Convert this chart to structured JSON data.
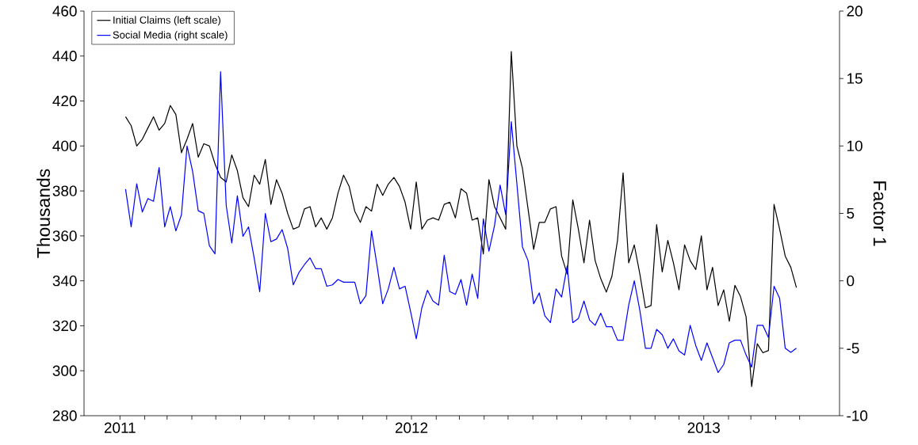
{
  "chart_data": {
    "type": "line",
    "ylabel": "Thousands",
    "y2label": "Factor 1",
    "legend": "top left",
    "x": [
      "2011-01-08",
      "2011-01-15",
      "2011-01-22",
      "2011-01-29",
      "2011-02-05",
      "2011-02-12",
      "2011-02-19",
      "2011-02-26",
      "2011-03-05",
      "2011-03-12",
      "2011-03-19",
      "2011-03-26",
      "2011-04-02",
      "2011-04-09",
      "2011-04-16",
      "2011-04-23",
      "2011-04-30",
      "2011-05-07",
      "2011-05-14",
      "2011-05-21",
      "2011-05-28",
      "2011-06-04",
      "2011-06-11",
      "2011-06-18",
      "2011-06-25",
      "2011-07-02",
      "2011-07-09",
      "2011-07-16",
      "2011-07-23",
      "2011-07-30",
      "2011-08-06",
      "2011-08-13",
      "2011-08-20",
      "2011-08-27",
      "2011-09-03",
      "2011-09-10",
      "2011-09-17",
      "2011-09-24",
      "2011-10-01",
      "2011-10-08",
      "2011-10-15",
      "2011-10-22",
      "2011-10-29",
      "2011-11-05",
      "2011-11-12",
      "2011-11-19",
      "2011-11-26",
      "2011-12-03",
      "2011-12-10",
      "2011-12-17",
      "2011-12-24",
      "2011-12-31",
      "2012-01-07",
      "2012-01-14",
      "2012-01-21",
      "2012-01-28",
      "2012-02-04",
      "2012-02-11",
      "2012-02-18",
      "2012-02-25",
      "2012-03-03",
      "2012-03-10",
      "2012-03-17",
      "2012-03-24",
      "2012-03-31",
      "2012-04-07",
      "2012-04-14",
      "2012-04-21",
      "2012-04-28",
      "2012-05-05",
      "2012-05-12",
      "2012-05-19",
      "2012-05-26",
      "2012-06-02",
      "2012-06-09",
      "2012-06-16",
      "2012-06-23",
      "2012-06-30",
      "2012-07-07",
      "2012-07-14",
      "2012-07-21",
      "2012-07-28",
      "2012-08-04",
      "2012-08-11",
      "2012-08-18",
      "2012-08-25",
      "2012-09-01",
      "2012-09-08",
      "2012-09-15",
      "2012-09-22",
      "2012-09-29",
      "2012-10-06",
      "2012-10-13",
      "2012-10-20",
      "2012-10-27",
      "2012-11-03",
      "2012-11-10",
      "2012-11-17",
      "2012-11-24",
      "2012-12-01",
      "2012-12-08",
      "2012-12-15",
      "2012-12-22",
      "2012-12-29",
      "2013-01-05",
      "2013-01-12",
      "2013-01-19",
      "2013-01-26",
      "2013-02-02",
      "2013-02-09",
      "2013-02-16",
      "2013-02-23",
      "2013-03-02",
      "2013-03-09",
      "2013-03-16",
      "2013-03-23",
      "2013-03-30",
      "2013-04-06",
      "2013-04-13",
      "2013-04-20",
      "2013-04-27"
    ],
    "xlim": [
      "2010-11-17",
      "2013-06-20"
    ],
    "xticks": [
      {
        "value": "2011-01-01",
        "label": "2011"
      },
      {
        "value": "2011-02-01",
        "label": null
      },
      {
        "value": "2011-03-01",
        "label": null
      },
      {
        "value": "2011-04-01",
        "label": null
      },
      {
        "value": "2011-05-01",
        "label": null
      },
      {
        "value": "2011-06-01",
        "label": null
      },
      {
        "value": "2011-07-01",
        "label": null
      },
      {
        "value": "2011-08-01",
        "label": null
      },
      {
        "value": "2011-09-01",
        "label": null
      },
      {
        "value": "2011-10-01",
        "label": null
      },
      {
        "value": "2011-11-01",
        "label": null
      },
      {
        "value": "2011-12-01",
        "label": null
      },
      {
        "value": "2012-01-01",
        "label": "2012"
      },
      {
        "value": "2012-02-01",
        "label": null
      },
      {
        "value": "2012-03-01",
        "label": null
      },
      {
        "value": "2012-04-01",
        "label": null
      },
      {
        "value": "2012-05-01",
        "label": null
      },
      {
        "value": "2012-06-01",
        "label": null
      },
      {
        "value": "2012-07-01",
        "label": null
      },
      {
        "value": "2012-08-01",
        "label": null
      },
      {
        "value": "2012-09-01",
        "label": null
      },
      {
        "value": "2012-10-01",
        "label": null
      },
      {
        "value": "2012-11-01",
        "label": null
      },
      {
        "value": "2012-12-01",
        "label": null
      },
      {
        "value": "2013-01-01",
        "label": "2013"
      },
      {
        "value": "2013-02-01",
        "label": null
      },
      {
        "value": "2013-03-01",
        "label": null
      },
      {
        "value": "2013-04-01",
        "label": null
      },
      {
        "value": "2013-05-01",
        "label": null
      }
    ],
    "ylim": [
      280,
      460
    ],
    "yticks": [
      280,
      300,
      320,
      340,
      360,
      380,
      400,
      420,
      440,
      460
    ],
    "y2lim": [
      -10,
      20
    ],
    "y2ticks": [
      -10,
      -5,
      0,
      5,
      10,
      15,
      20
    ],
    "series": [
      {
        "name": "Initial Claims (left scale)",
        "color": "#000000",
        "values": [
          413,
          409,
          400,
          403,
          408,
          413,
          407,
          410,
          418,
          414,
          397,
          403,
          410,
          395,
          401,
          400,
          392,
          386,
          384,
          396,
          389,
          377,
          373,
          387,
          383,
          394,
          374,
          385,
          379,
          370,
          363,
          364,
          372,
          373,
          364,
          368,
          363,
          368,
          379,
          387,
          382,
          371,
          366,
          373,
          371,
          383,
          378,
          383,
          386,
          382,
          375,
          363,
          384,
          363,
          367,
          368,
          367,
          374,
          375,
          368,
          381,
          379,
          367,
          368,
          352,
          385,
          373,
          368,
          363,
          442,
          400,
          390,
          372,
          354,
          366,
          366,
          372,
          373,
          351,
          343,
          376,
          363,
          348,
          367,
          349,
          341,
          335,
          342,
          358,
          388,
          348,
          356,
          343,
          328,
          329,
          365,
          344,
          358,
          348,
          336,
          356,
          349,
          345,
          360,
          336,
          346,
          329,
          336,
          322,
          338,
          333,
          324,
          293,
          312,
          308,
          309,
          374,
          363,
          351,
          346,
          337
        ]
      },
      {
        "name": "Social Media (right scale)",
        "color": "#0000ff",
        "axis": "y2",
        "values": [
          6.8,
          4.0,
          7.2,
          5.1,
          6.1,
          5.9,
          8.4,
          4.0,
          5.5,
          3.7,
          4.9,
          10.0,
          8.1,
          5.2,
          5.0,
          2.6,
          2.0,
          15.5,
          5.6,
          2.8,
          6.3,
          3.3,
          4.0,
          1.7,
          -0.8,
          5.0,
          2.9,
          3.1,
          3.8,
          2.4,
          -0.3,
          0.6,
          1.2,
          1.7,
          0.9,
          0.9,
          -0.4,
          -0.3,
          0.1,
          -0.1,
          -0.1,
          -0.1,
          -1.7,
          -1.1,
          3.7,
          1.1,
          -1.7,
          -0.6,
          1.0,
          -0.6,
          -0.4,
          -2.3,
          -4.3,
          -2.0,
          -0.7,
          -1.5,
          -1.8,
          1.9,
          -0.8,
          -1.0,
          0.1,
          -1.8,
          0.5,
          -1.3,
          4.6,
          2.2,
          4.1,
          7.1,
          4.9,
          11.8,
          7.2,
          2.5,
          1.5,
          -1.7,
          -0.9,
          -2.6,
          -3.1,
          -0.6,
          -1.2,
          1.1,
          -3.1,
          -2.8,
          -1.5,
          -2.9,
          -3.3,
          -2.4,
          -3.4,
          -3.4,
          -4.4,
          -4.4,
          -1.8,
          0.0,
          -2.2,
          -5.0,
          -5.0,
          -3.6,
          -4.0,
          -5.0,
          -4.3,
          -5.2,
          -5.5,
          -3.3,
          -4.8,
          -5.9,
          -4.6,
          -5.7,
          -6.8,
          -6.2,
          -4.6,
          -4.4,
          -4.4,
          -5.5,
          -6.4,
          -3.3,
          -3.3,
          -4.2,
          -0.4,
          -1.3,
          -5.0,
          -5.3,
          -5.0
        ]
      }
    ]
  }
}
